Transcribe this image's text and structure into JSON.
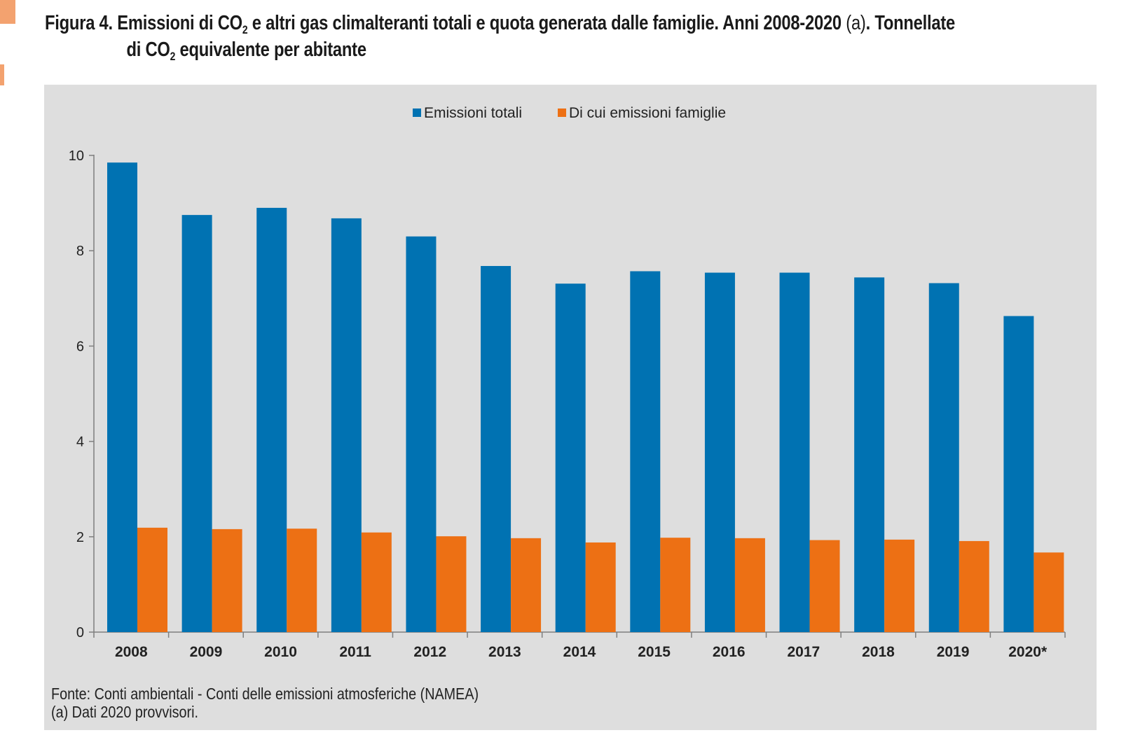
{
  "title": {
    "prefix": "Figura 4.",
    "part1": "Emissioni di CO",
    "sub1": "2",
    "part2": " e altri gas climalteranti totali e quota generata dalle famiglie. Anni 2008-2020 ",
    "note_ref": "(a)",
    "part3": ". Tonnellate",
    "line2_part1": "di CO",
    "sub2": "2",
    "line2_part2": " equivalente per abitante"
  },
  "source": {
    "line1": "Fonte: Conti ambientali - Conti delle emissioni atmosferiche (NAMEA)",
    "line2": "(a) Dati 2020 provvisori."
  },
  "chart_data": {
    "type": "bar",
    "categories": [
      "2008",
      "2009",
      "2010",
      "2011",
      "2012",
      "2013",
      "2014",
      "2015",
      "2016",
      "2017",
      "2018",
      "2019",
      "2020*"
    ],
    "series": [
      {
        "name": "Emissioni totali",
        "color": "#0072b2",
        "values": [
          9.85,
          8.75,
          8.9,
          8.68,
          8.3,
          7.68,
          7.31,
          7.57,
          7.54,
          7.54,
          7.44,
          7.32,
          6.63
        ]
      },
      {
        "name": "Di cui emissioni famiglie",
        "color": "#ed7014",
        "values": [
          2.19,
          2.16,
          2.17,
          2.09,
          2.01,
          1.97,
          1.88,
          1.98,
          1.97,
          1.93,
          1.94,
          1.91,
          1.67
        ]
      }
    ],
    "ylim": [
      0,
      10
    ],
    "yticks": [
      "0",
      "2",
      "4",
      "6",
      "8",
      "10"
    ],
    "legend_position": "top-center",
    "grid": false,
    "panel_background": "#dedede"
  }
}
